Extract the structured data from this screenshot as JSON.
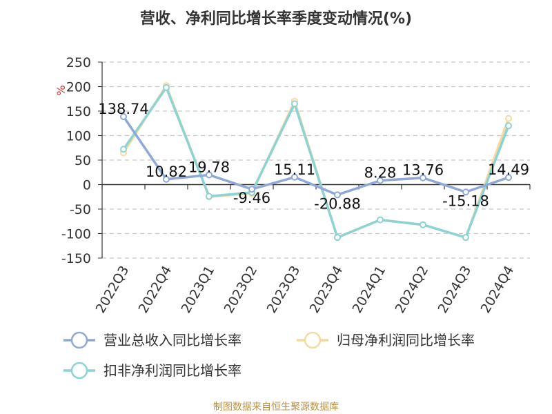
{
  "source_text": "制图数据来自恒生聚源数据库",
  "chart_data": {
    "type": "line",
    "title": "营收、净利同比增长率季度变动情况(%)",
    "ylabel": "%",
    "ylim": [
      -150,
      250
    ],
    "yticks": [
      250,
      200,
      150,
      100,
      50,
      0,
      -50,
      -100,
      -150
    ],
    "grid": true,
    "legend_position": "bottom",
    "categories": [
      "2022Q3",
      "2022Q4",
      "2023Q1",
      "2023Q2",
      "2023Q3",
      "2023Q4",
      "2024Q1",
      "2024Q2",
      "2024Q3",
      "2024Q4"
    ],
    "series": [
      {
        "name": "营业总收入同比增长率",
        "color": "#8fa8d8",
        "values": [
          138.74,
          10.82,
          19.78,
          -9.46,
          15.11,
          -20.88,
          8.28,
          13.76,
          -15.18,
          14.49
        ],
        "labels": [
          "138.74",
          "10.82",
          "19.78",
          "-9.46",
          "15.11",
          "-20.88",
          "8.28",
          "13.76",
          "-15.18",
          "14.49"
        ]
      },
      {
        "name": "归母净利润同比增长率",
        "color": "#f5d9a0",
        "values": [
          65,
          202,
          -25,
          -18,
          170,
          -108,
          -72,
          -82,
          -108,
          135
        ]
      },
      {
        "name": "扣非净利润同比增长率",
        "color": "#8dd3d3",
        "values": [
          72,
          198,
          -24,
          -16,
          165,
          -108,
          -72,
          -82,
          -108,
          120
        ]
      }
    ]
  }
}
